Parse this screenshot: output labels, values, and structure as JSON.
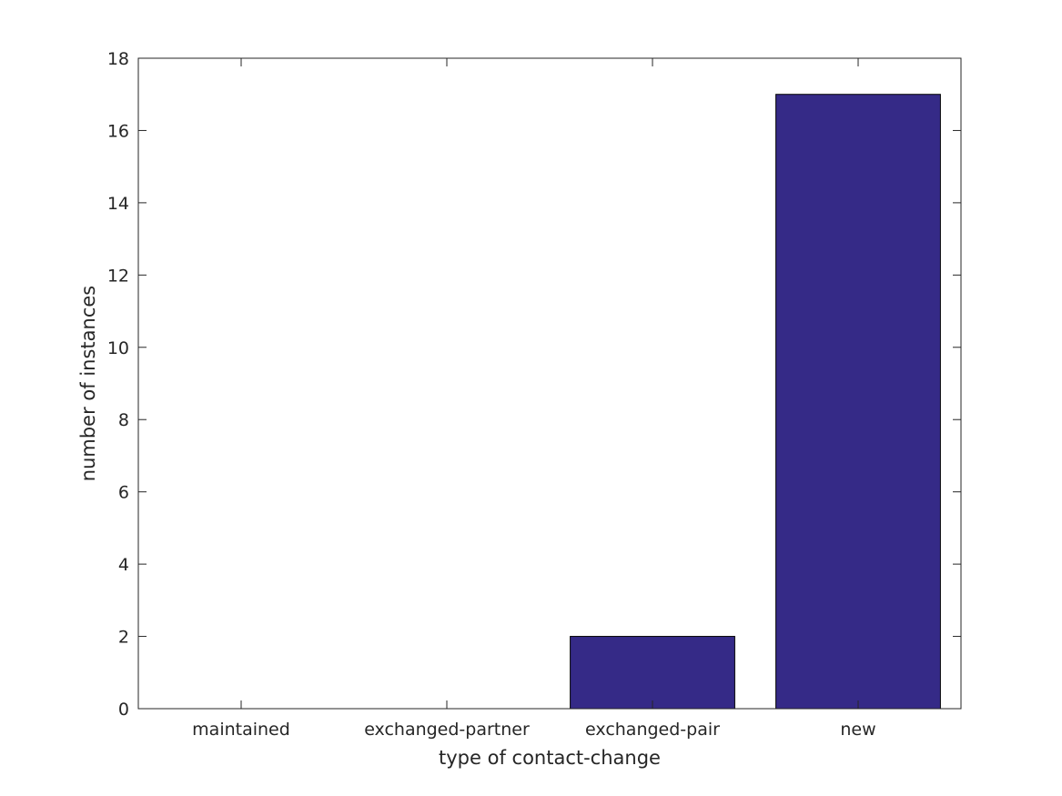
{
  "chart_data": {
    "type": "bar",
    "title": "",
    "xlabel": "type of contact-change",
    "ylabel": "number of instances",
    "categories": [
      "maintained",
      "exchanged-partner",
      "exchanged-pair",
      "new"
    ],
    "values": [
      0,
      0,
      2,
      17
    ],
    "ylim": [
      0,
      18
    ],
    "yticks": [
      0,
      2,
      4,
      6,
      8,
      10,
      12,
      14,
      16,
      18
    ],
    "grid": false,
    "legend": "none",
    "bar_color": "#352a87",
    "bar_edge_color": "#000000",
    "axis_color": "#262626"
  }
}
